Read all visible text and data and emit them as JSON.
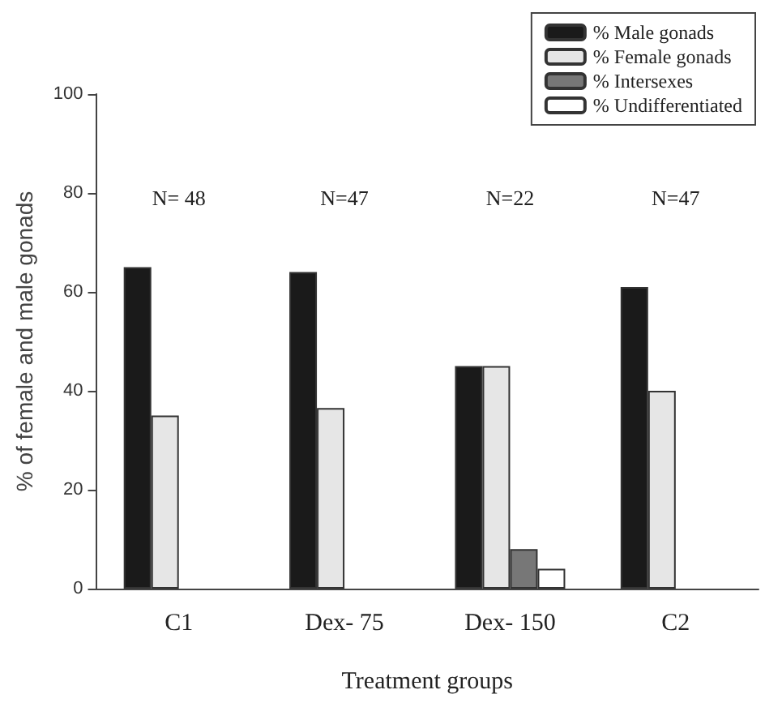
{
  "chart_data": {
    "type": "bar",
    "xlabel": "Treatment groups",
    "ylabel": "% of female and male gonads",
    "categories": [
      "C1",
      "Dex- 75",
      "Dex- 150",
      "C2"
    ],
    "series": [
      {
        "name": "% Male gonads",
        "color": "#1a1a1a",
        "values": [
          65,
          64,
          45,
          61
        ]
      },
      {
        "name": "% Female gonads",
        "color": "#e6e6e6",
        "values": [
          35,
          36.5,
          45,
          40
        ]
      },
      {
        "name": "% Intersexes",
        "color": "#777777",
        "values": [
          null,
          null,
          8,
          null
        ]
      },
      {
        "name": "% Undifferentiated",
        "color": "#ffffff",
        "values": [
          null,
          null,
          4,
          null
        ]
      }
    ],
    "ylim": [
      0,
      100
    ],
    "yticks": [
      0,
      20,
      40,
      60,
      80,
      100
    ],
    "grid": false,
    "legend": "top right",
    "annotations": [
      "N= 48",
      "N=47",
      "N=22",
      "N=47"
    ]
  }
}
